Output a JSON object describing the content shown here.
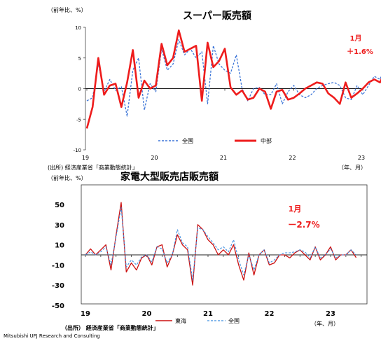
{
  "chart_data": [
    {
      "type": "line",
      "title": "スーパー販売額",
      "unit_label": "（前年比、%）",
      "source": "(出所) 経済産業省「商業動態統計」",
      "x_unit_label": "（年、月）",
      "x_tick_labels": [
        "19",
        "20",
        "21",
        "22",
        "23"
      ],
      "y_tick_labels": [
        "10",
        "5",
        "0",
        "-5",
        "-10"
      ],
      "ylim": [
        -10,
        10
      ],
      "annotation": {
        "line1": "1月",
        "line2": "＋1.6%"
      },
      "colors": {
        "red": "#ee1c1c",
        "blue": "#3e76d8"
      },
      "series": [
        {
          "name": "全国",
          "values": [
            -2.0,
            -1.5,
            4.0,
            -0.5,
            1.5,
            -0.3,
            0.3,
            -4.5,
            3.0,
            5.0,
            -3.5,
            0.8,
            -0.5,
            6.5,
            3.0,
            4.0,
            8.0,
            5.5,
            6.5,
            5.0,
            6.0,
            -2.5,
            7.0,
            4.0,
            3.0,
            2.5,
            5.5,
            0.0,
            -2.0,
            0.0,
            0.2,
            -1.0,
            -1.0,
            0.8,
            -2.5,
            -0.5,
            0.5,
            -1.0,
            -1.5,
            -1.0,
            0.0,
            0.5,
            0.8,
            1.0,
            0.5,
            -1.5,
            -1.8,
            0.5,
            -1.0,
            0.5,
            2.0,
            1.5,
            4.0,
            2.0
          ]
        },
        {
          "name": "中部",
          "values": [
            -6.5,
            -3.0,
            5.0,
            -1.0,
            0.5,
            0.8,
            -3.0,
            1.0,
            6.3,
            -1.5,
            1.3,
            0.0,
            0.5,
            7.3,
            3.8,
            5.0,
            9.5,
            6.0,
            6.5,
            7.0,
            -2.0,
            7.5,
            3.5,
            4.5,
            6.5,
            0.2,
            -1.0,
            -0.3,
            -1.8,
            -1.5,
            0.0,
            -0.5,
            -3.3,
            -0.5,
            -0.2,
            -1.8,
            -1.5,
            -0.8,
            0.0,
            0.5,
            1.0,
            0.8,
            -0.8,
            -1.5,
            -2.5,
            1.0,
            -1.5,
            -0.8,
            0.0,
            1.0,
            1.5,
            1.0,
            3.0,
            1.6
          ]
        }
      ]
    },
    {
      "type": "line",
      "title": "家電大型販売店販売額",
      "unit_label": "（前年比、%）",
      "source": "（出所） 経済産業省「商業動態統計」",
      "x_unit_label": "（年、月）",
      "x_tick_labels": [
        "19",
        "20",
        "21",
        "22",
        "23"
      ],
      "y_tick_labels": [
        "50",
        "30",
        "10",
        "-10",
        "-30",
        "-50"
      ],
      "ylim": [
        -50,
        50
      ],
      "annotation": {
        "line1": "1月",
        "line2": "ー2.7%"
      },
      "colors": {
        "red": "#cc1111",
        "blue": "#3f8fe0"
      },
      "series": [
        {
          "name": "東海",
          "values": [
            0,
            6,
            0,
            5,
            10,
            -15,
            20,
            52,
            -17,
            -8,
            -15,
            -3,
            0,
            -10,
            8,
            10,
            -12,
            0,
            20,
            10,
            5,
            -30,
            30,
            25,
            15,
            10,
            0,
            5,
            0,
            10,
            -10,
            -25,
            2,
            -20,
            0,
            5,
            -10,
            -8,
            0,
            0,
            -3,
            2,
            5,
            0,
            -5,
            8,
            -5,
            0,
            8,
            -5,
            0,
            0,
            5,
            -2.7
          ]
        },
        {
          "name": "全国",
          "values": [
            0,
            3,
            0,
            3,
            8,
            -10,
            18,
            47,
            -12,
            -5,
            -10,
            -2,
            0,
            -7,
            8,
            6,
            -8,
            0,
            25,
            12,
            8,
            -25,
            27,
            25,
            18,
            12,
            5,
            8,
            3,
            15,
            -5,
            -20,
            0,
            -15,
            0,
            5,
            -8,
            -5,
            0,
            2,
            2,
            3,
            5,
            3,
            -3,
            8,
            -3,
            0,
            6,
            -3,
            0,
            0,
            5,
            0
          ]
        }
      ]
    }
  ],
  "footer": {
    "company": "Mitsubishi UFJ Research and Consulting"
  }
}
